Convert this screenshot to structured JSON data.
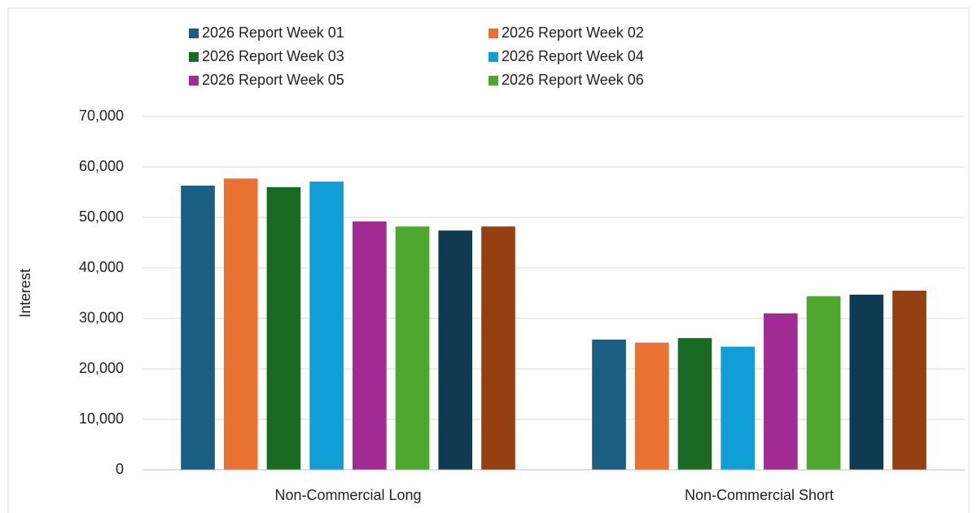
{
  "chart_data": {
    "type": "bar",
    "y_label": "Interest",
    "categories": [
      "Non-Commercial Long",
      "Non-Commercial Short"
    ],
    "series": [
      {
        "name": "2026 Report Week 01",
        "color": "#1a5e84",
        "values": [
          56300,
          25800
        ]
      },
      {
        "name": "2026 Report Week 02",
        "color": "#e97132",
        "values": [
          57700,
          25200
        ]
      },
      {
        "name": "2026 Report Week 03",
        "color": "#196b24",
        "values": [
          56000,
          26100
        ]
      },
      {
        "name": "2026 Report Week 04",
        "color": "#0f9ed5",
        "values": [
          57100,
          24400
        ]
      },
      {
        "name": "2026 Report Week 05",
        "color": "#a02b93",
        "values": [
          49200,
          31000
        ]
      },
      {
        "name": "2026 Report Week 06",
        "color": "#4ea72e",
        "values": [
          48200,
          34400
        ]
      },
      {
        "color": "#0e3a52",
        "values": [
          47400,
          34700
        ]
      },
      {
        "color": "#963f13",
        "values": [
          48200,
          35500
        ]
      }
    ],
    "ylim": [
      0,
      70000
    ],
    "yticks": [
      0,
      {
        "value": 10000,
        "label": "10,000"
      },
      {
        "value": 20000,
        "label": "20,000"
      },
      {
        "value": 30000,
        "label": "30,000"
      },
      {
        "value": 40000,
        "label": "40,000"
      },
      {
        "value": 50000,
        "label": "50,000"
      },
      {
        "value": 60000,
        "label": "60,000"
      },
      {
        "value": 70000,
        "label": "70,000"
      }
    ],
    "grid": true
  }
}
